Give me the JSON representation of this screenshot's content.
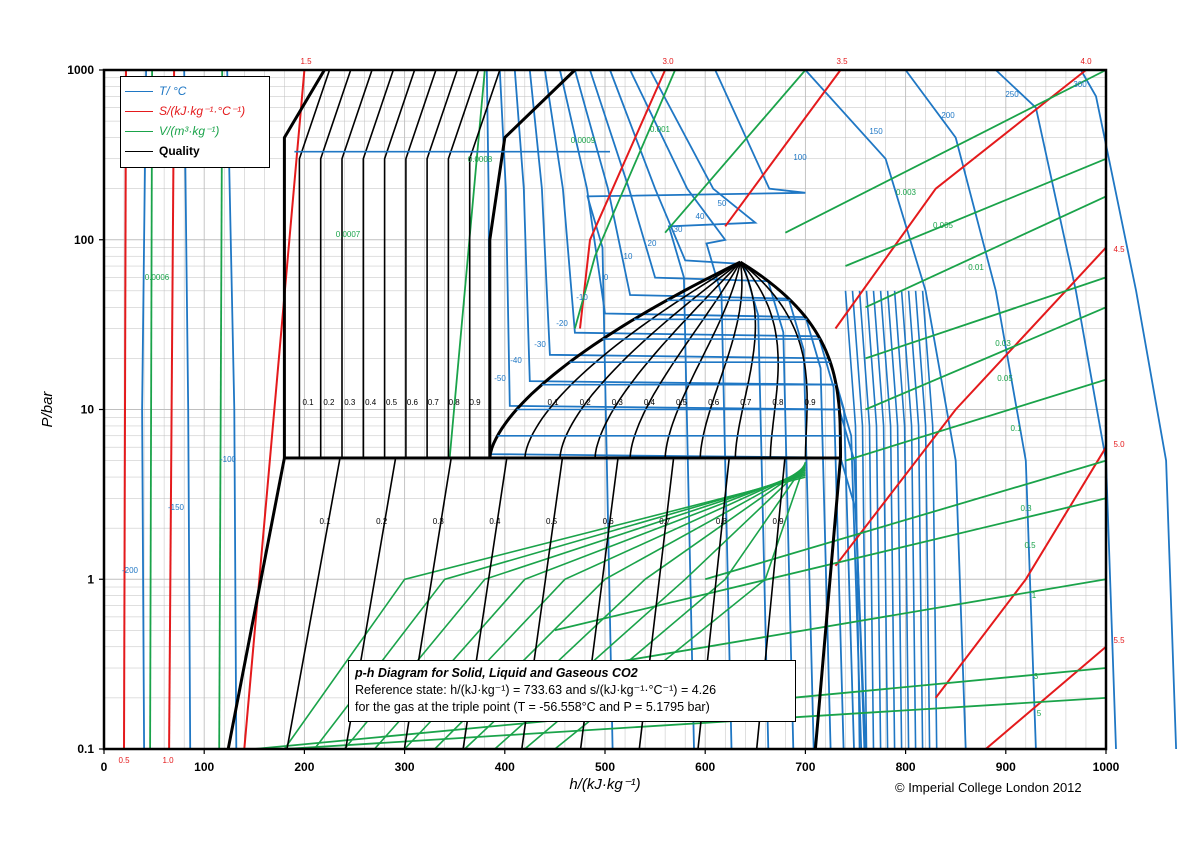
{
  "chart_data": {
    "type": "line",
    "title": "p-h Diagram for Solid, Liquid and Gaseous CO2",
    "reference_lines": [
      "Reference state: h/(kJ·kg⁻¹) = 733.63 and s/(kJ·kg⁻¹·°C⁻¹) = 4.26",
      "for the gas at the triple point (T = -56.558°C and P = 5.1795 bar)"
    ],
    "xlabel": "h/(kJ·kg⁻¹)",
    "ylabel": "P/bar",
    "xlim": [
      0,
      1000
    ],
    "ylim": [
      0.1,
      1000
    ],
    "y_scale": "log",
    "grid": true,
    "x_ticks": [
      "0",
      "100",
      "200",
      "300",
      "400",
      "500",
      "600",
      "700",
      "800",
      "900",
      "1000"
    ],
    "y_ticks": [
      {
        "value": 0.1,
        "label": "0.1"
      },
      {
        "value": 1,
        "label": "1"
      },
      {
        "value": 10,
        "label": "10"
      },
      {
        "value": 100,
        "label": "100"
      },
      {
        "value": 1000,
        "label": "1000"
      }
    ],
    "legend": {
      "position": "top-left",
      "entries": [
        {
          "label": "T/ °C",
          "color": "#1f77c4"
        },
        {
          "label": "S/(kJ·kg⁻¹·°C⁻¹)",
          "color": "#e41a1c"
        },
        {
          "label": "V/(m³·kg⁻¹)",
          "color": "#1aa34a"
        },
        {
          "label": "Quality",
          "color": "#000000"
        }
      ]
    },
    "triple_point_pressure_bar": 5.1795,
    "critical_point": {
      "h": 635,
      "p": 73.8
    },
    "series_temperature": [
      {
        "label": "-200",
        "x": [
          [
            40,
            0.1
          ],
          [
            42,
            1000
          ]
        ]
      },
      {
        "label": "-150",
        "x": [
          [
            86,
            0.1
          ],
          [
            80,
            1000
          ]
        ]
      },
      {
        "label": "-100",
        "x": [
          [
            132,
            0.1
          ],
          [
            123,
            1000
          ]
        ]
      },
      {
        "label": "-50",
        "x": [
          [
            385,
            5.2
          ],
          [
            382,
            1000
          ]
        ]
      },
      {
        "label": "-40",
        "x": [
          [
            405,
            10
          ],
          [
            395,
            1000
          ]
        ]
      },
      {
        "label": "-30",
        "x": [
          [
            425,
            14
          ],
          [
            410,
            1000
          ]
        ]
      },
      {
        "label": "-20",
        "x": [
          [
            445,
            20
          ],
          [
            425,
            1000
          ]
        ]
      },
      {
        "label": "-10",
        "x": [
          [
            470,
            27
          ],
          [
            440,
            1000
          ]
        ]
      },
      {
        "label": "0",
        "x": [
          [
            500,
            35
          ],
          [
            455,
            1000
          ]
        ]
      },
      {
        "label": "10",
        "x": [
          [
            525,
            45
          ],
          [
            470,
            1000
          ]
        ]
      },
      {
        "label": "20",
        "x": [
          [
            550,
            57
          ],
          [
            485,
            1000
          ]
        ]
      },
      {
        "label": "30",
        "x": [
          [
            580,
            72
          ],
          [
            505,
            1000
          ]
        ]
      },
      {
        "label": "40",
        "x": [
          [
            620,
            95
          ],
          [
            525,
            1000
          ]
        ]
      },
      {
        "label": "50",
        "x": [
          [
            650,
            120
          ],
          [
            545,
            1000
          ]
        ]
      },
      {
        "label": "100",
        "x": [
          [
            700,
            180
          ],
          [
            610,
            1000
          ]
        ]
      },
      {
        "label": "150",
        "x": [
          [
            780,
            300
          ],
          [
            700,
            1000
          ]
        ]
      },
      {
        "label": "200",
        "x": [
          [
            850,
            400
          ],
          [
            800,
            1000
          ]
        ]
      },
      {
        "label": "250",
        "x": [
          [
            930,
            600
          ],
          [
            890,
            1000
          ]
        ]
      },
      {
        "label": "300",
        "x": [
          [
            990,
            700
          ],
          [
            975,
            1000
          ]
        ]
      }
    ],
    "series_entropy": [
      {
        "label": "0.5",
        "h_at_low": 20
      },
      {
        "label": "1.0",
        "h_at_low": 65
      },
      {
        "label": "1.5",
        "h_at_high": 200
      },
      {
        "label": "3.0",
        "h_at_high": 560
      },
      {
        "label": "3.5",
        "h_at_high": 735
      },
      {
        "label": "4.0",
        "h_at_high": 980
      },
      {
        "label": "4.5",
        "p_at_right": 90
      },
      {
        "label": "5.0",
        "p_at_right": 6
      },
      {
        "label": "5.5",
        "p_at_right": 0.4
      }
    ],
    "entropy_labels": [
      "0.5",
      "1.0",
      "1.5",
      "3.0",
      "3.5",
      "4.0",
      "4.5",
      "5.0",
      "5.5"
    ],
    "volume_labels": [
      "0.0006",
      "0.0007",
      "0.0008",
      "0.0009",
      "0.001",
      "0.003",
      "0.005",
      "0.01",
      "0.03",
      "0.05",
      "0.1",
      "0.3",
      "0.5",
      "1",
      "3",
      "5"
    ],
    "temperature_labels": [
      "-200",
      "-150",
      "-100",
      "-50",
      "-40",
      "-30",
      "-20",
      "-10",
      "0",
      "10",
      "20",
      "30",
      "40",
      "50",
      "100",
      "150",
      "200",
      "250",
      "300"
    ],
    "quality_labels": [
      "0.1",
      "0.2",
      "0.3",
      "0.4",
      "0.5",
      "0.6",
      "0.7",
      "0.8",
      "0.9"
    ]
  },
  "copyright": "© Imperial College London 2012",
  "colors": {
    "temperature": "#1f77c4",
    "entropy": "#e41a1c",
    "volume": "#1aa34a",
    "quality": "#000000",
    "grid": "#bfbfbf"
  }
}
